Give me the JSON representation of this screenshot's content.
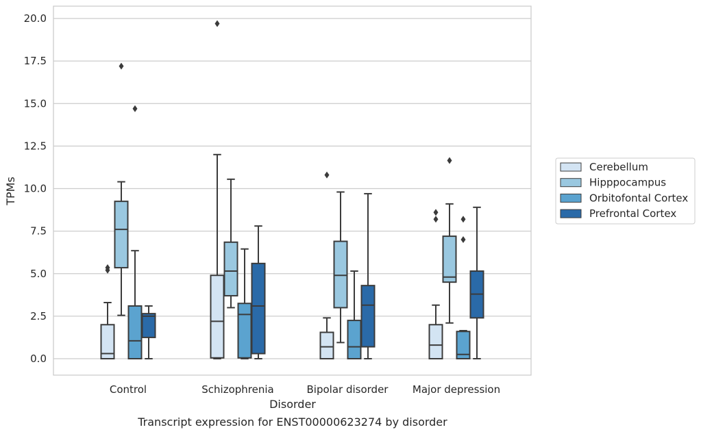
{
  "caption": "Transcript expression for ENST00000623274 by disorder",
  "chart_data": {
    "type": "box",
    "xlabel": "Disorder",
    "ylabel": "TPMs",
    "ylim": [
      -1.0,
      20.7
    ],
    "yticks": [
      0.0,
      2.5,
      5.0,
      7.5,
      10.0,
      12.5,
      15.0,
      17.5,
      20.0
    ],
    "ytick_labels": [
      "0.0",
      "2.5",
      "5.0",
      "7.5",
      "10.0",
      "12.5",
      "15.0",
      "17.5",
      "20.0"
    ],
    "grid": "horizontal",
    "legend_position": "right",
    "categories": [
      "Control",
      "Schizophrenia",
      "Bipolar disorder",
      "Major depression"
    ],
    "series": [
      {
        "name": "Cerebellum",
        "color": "#d3e4f3",
        "boxes": [
          {
            "whisker_low": 0.0,
            "q1": 0.0,
            "median": 0.3,
            "q3": 2.0,
            "whisker_high": 3.3,
            "outliers": [
              5.2,
              5.35
            ]
          },
          {
            "whisker_low": 0.0,
            "q1": 0.05,
            "median": 2.2,
            "q3": 4.9,
            "whisker_high": 12.0,
            "outliers": [
              19.7
            ]
          },
          {
            "whisker_low": 0.0,
            "q1": 0.0,
            "median": 0.7,
            "q3": 1.55,
            "whisker_high": 2.4,
            "outliers": [
              10.8
            ]
          },
          {
            "whisker_low": 0.0,
            "q1": 0.0,
            "median": 0.8,
            "q3": 2.0,
            "whisker_high": 3.15,
            "outliers": [
              8.2,
              8.6
            ]
          }
        ]
      },
      {
        "name": "Hipppocampus",
        "color": "#9ac8e0",
        "boxes": [
          {
            "whisker_low": 2.55,
            "q1": 5.35,
            "median": 7.6,
            "q3": 9.25,
            "whisker_high": 10.4,
            "outliers": [
              17.2
            ]
          },
          {
            "whisker_low": 3.0,
            "q1": 3.7,
            "median": 5.15,
            "q3": 6.85,
            "whisker_high": 10.55,
            "outliers": []
          },
          {
            "whisker_low": 0.95,
            "q1": 3.0,
            "median": 4.9,
            "q3": 6.9,
            "whisker_high": 9.8,
            "outliers": []
          },
          {
            "whisker_low": 2.1,
            "q1": 4.5,
            "median": 4.8,
            "q3": 7.2,
            "whisker_high": 9.1,
            "outliers": [
              11.65
            ]
          }
        ]
      },
      {
        "name": "Orbitofontal Cortex",
        "color": "#5ba3cf",
        "boxes": [
          {
            "whisker_low": 0.0,
            "q1": 0.0,
            "median": 1.05,
            "q3": 3.1,
            "whisker_high": 6.35,
            "outliers": [
              14.7
            ]
          },
          {
            "whisker_low": 0.0,
            "q1": 0.05,
            "median": 2.6,
            "q3": 3.25,
            "whisker_high": 6.45,
            "outliers": []
          },
          {
            "whisker_low": 0.0,
            "q1": 0.0,
            "median": 0.7,
            "q3": 2.25,
            "whisker_high": 5.15,
            "outliers": []
          },
          {
            "whisker_low": 0.0,
            "q1": 0.0,
            "median": 0.25,
            "q3": 1.6,
            "whisker_high": 1.65,
            "outliers": [
              7.0,
              8.2
            ]
          }
        ]
      },
      {
        "name": "Prefrontal Cortex",
        "color": "#2a6aa8",
        "boxes": [
          {
            "whisker_low": 0.0,
            "q1": 1.25,
            "median": 2.5,
            "q3": 2.65,
            "whisker_high": 3.1,
            "outliers": []
          },
          {
            "whisker_low": 0.0,
            "q1": 0.3,
            "median": 3.1,
            "q3": 5.6,
            "whisker_high": 7.8,
            "outliers": []
          },
          {
            "whisker_low": 0.0,
            "q1": 0.7,
            "median": 3.15,
            "q3": 4.3,
            "whisker_high": 9.7,
            "outliers": []
          },
          {
            "whisker_low": 0.0,
            "q1": 2.4,
            "median": 3.8,
            "q3": 5.15,
            "whisker_high": 8.9,
            "outliers": []
          }
        ]
      }
    ]
  }
}
